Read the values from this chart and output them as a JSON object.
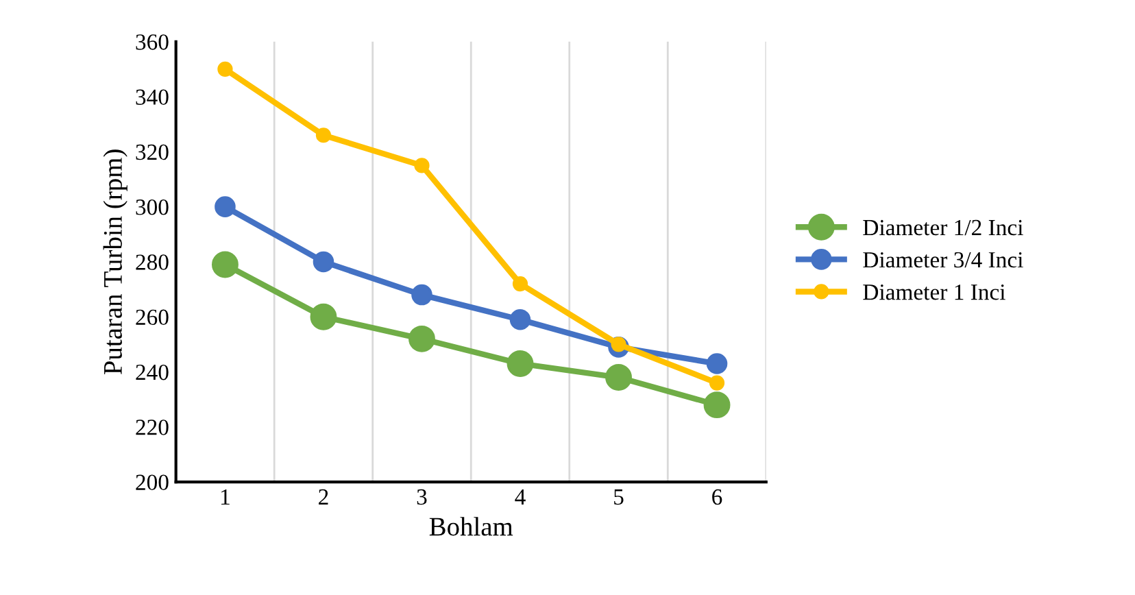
{
  "chart_data": {
    "type": "line",
    "xlabel": "Bohlam",
    "ylabel": "Putaran Turbin (rpm)",
    "categories": [
      "1",
      "2",
      "3",
      "4",
      "5",
      "6"
    ],
    "series": [
      {
        "name": "Diameter 1/2 Inci",
        "color": "#70ad47",
        "values": [
          279,
          260,
          252,
          243,
          238,
          228
        ]
      },
      {
        "name": "Diameter 3/4 Inci",
        "color": "#4472c4",
        "values": [
          300,
          280,
          268,
          259,
          249,
          243
        ]
      },
      {
        "name": "Diameter 1 Inci",
        "color": "#ffc000",
        "values": [
          350,
          326,
          315,
          272,
          250,
          236
        ]
      }
    ],
    "ylim": [
      200,
      360
    ],
    "yticks": [
      200,
      220,
      240,
      260,
      280,
      300,
      320,
      340,
      360
    ],
    "grid": "x",
    "legend": "right",
    "marker": "circle",
    "line_style": "solid"
  }
}
